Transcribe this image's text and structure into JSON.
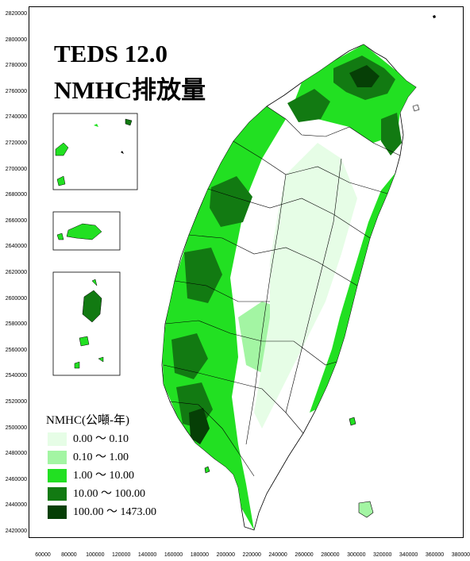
{
  "map": {
    "title_line1": "TEDS 12.0",
    "title_line2": "NMHC排放量",
    "y_axis_ticks": [
      "2820000",
      "2800000",
      "2780000",
      "2760000",
      "2740000",
      "2720000",
      "2700000",
      "2680000",
      "2660000",
      "2640000",
      "2620000",
      "2600000",
      "2580000",
      "2560000",
      "2540000",
      "2520000",
      "2500000",
      "2480000",
      "2460000",
      "2440000",
      "2420000"
    ],
    "x_axis_ticks": [
      "60000",
      "80000",
      "100000",
      "120000",
      "140000",
      "160000",
      "180000",
      "200000",
      "220000",
      "240000",
      "260000",
      "280000",
      "300000",
      "320000",
      "340000",
      "360000",
      "380000"
    ],
    "legend": {
      "title": "NMHC(公噸-年)",
      "items": [
        {
          "label": "0.00  ～ 0.10",
          "color": "#e6fde6"
        },
        {
          "label": "0.10  ～ 1.00",
          "color": "#a3f5a3"
        },
        {
          "label": "1.00  ～ 10.00",
          "color": "#22e022"
        },
        {
          "label": "10.00  ～ 100.00",
          "color": "#127a12"
        },
        {
          "label": "100.00  ～ 1473.00",
          "color": "#063f06"
        }
      ]
    }
  }
}
